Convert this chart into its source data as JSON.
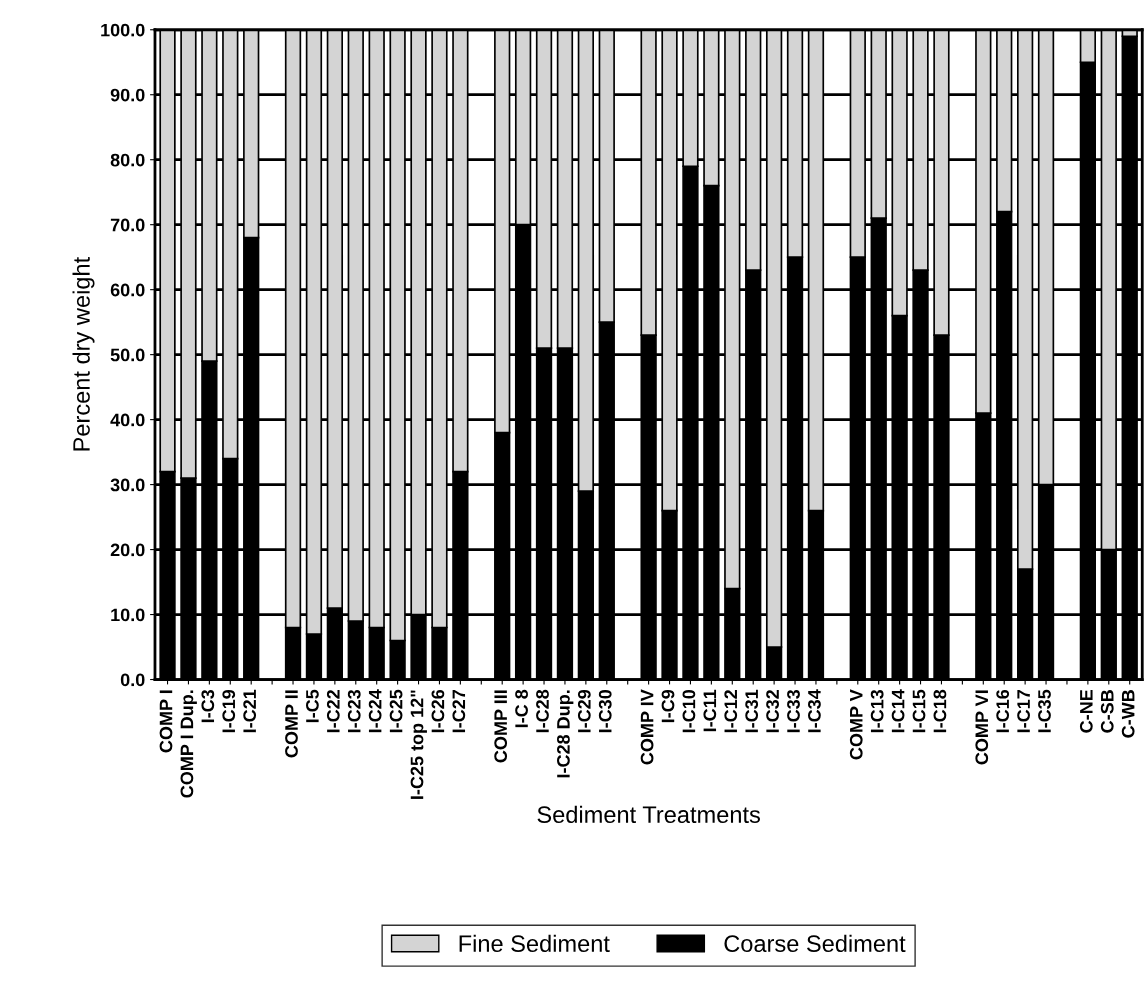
{
  "chart_data": {
    "type": "bar",
    "stacked": true,
    "xlabel": "Sediment Treatments",
    "ylabel": "Percent dry weight",
    "categories": [
      "COMP I",
      "COMP I Dup.",
      "I-C3",
      "I-C19",
      "I-C21",
      null,
      "COMP II",
      "I-C5",
      "I-C22",
      "I-C23",
      "I-C24",
      "I-C25",
      "I-C25 top 12\"",
      "I-C26",
      "I-C27",
      null,
      "COMP III",
      "I-C 8",
      "I-C28",
      "I-C28 Dup.",
      "I-C29",
      "I-C30",
      null,
      "COMP IV",
      "I-C9",
      "I-C10",
      "I-C11",
      "I-C12",
      "I-C31",
      "I-C32",
      "I-C33",
      "I-C34",
      null,
      "COMP V",
      "I-C13",
      "I-C14",
      "I-C15",
      "I-C18",
      null,
      "COMP VI",
      "I-C16",
      "I-C17",
      "I-C35",
      null,
      "C-NE",
      "C-SB",
      "C-WB"
    ],
    "series": [
      {
        "name": "Coarse Sediment",
        "color": "#000000",
        "values": [
          32,
          31,
          49,
          34,
          68,
          null,
          8,
          7,
          11,
          9,
          8,
          6,
          10,
          8,
          32,
          null,
          38,
          70,
          51,
          51,
          29,
          55,
          null,
          53,
          26,
          79,
          76,
          14,
          63,
          5,
          65,
          26,
          null,
          65,
          71,
          56,
          63,
          53,
          null,
          41,
          72,
          17,
          30,
          null,
          95,
          20,
          99
        ]
      },
      {
        "name": "Fine Sediment",
        "color": "#d4d4d4",
        "values": [
          68,
          69,
          51,
          66,
          32,
          null,
          92,
          93,
          89,
          91,
          92,
          94,
          90,
          92,
          68,
          null,
          62,
          30,
          49,
          49,
          71,
          45,
          null,
          47,
          74,
          21,
          24,
          86,
          37,
          95,
          35,
          74,
          null,
          35,
          29,
          44,
          37,
          47,
          null,
          59,
          28,
          83,
          70,
          null,
          5,
          80,
          1
        ]
      }
    ],
    "ylim": [
      0,
      100
    ],
    "yticks": [
      {
        "value": 0,
        "label": "0.0"
      },
      {
        "value": 10,
        "label": "10.0"
      },
      {
        "value": 20,
        "label": "20.0"
      },
      {
        "value": 30,
        "label": "30.0"
      },
      {
        "value": 40,
        "label": "40.0"
      },
      {
        "value": 50,
        "label": "50.0"
      },
      {
        "value": 60,
        "label": "60.0"
      },
      {
        "value": 70,
        "label": "70.0"
      },
      {
        "value": 80,
        "label": "80.0"
      },
      {
        "value": 90,
        "label": "90.0"
      },
      {
        "value": 100,
        "label": "100.0"
      }
    ],
    "grid": "y",
    "legend": "bottom"
  }
}
